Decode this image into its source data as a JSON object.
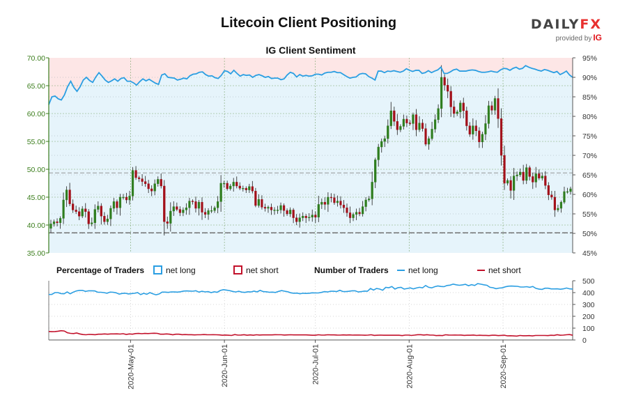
{
  "header": {
    "title": "Litecoin Client Positioning",
    "subtitle": "IG Client Sentiment",
    "logo": {
      "text_main": "DAILY",
      "text_fx": "FX",
      "provided_by": "provided by",
      "ig": "IG"
    }
  },
  "legend": {
    "pct_title": "Percentage of Traders",
    "pct_long": "net long",
    "pct_short": "net short",
    "num_title": "Number of Traders",
    "num_long": "net long",
    "num_short": "net short"
  },
  "colors": {
    "long": "#2a9ee2",
    "short": "#c2102a",
    "bull": "#2e7d1e",
    "bear": "#a2101a",
    "axis_left": "#3a7d1b",
    "bg_long": "#e6f4fb",
    "bg_short": "#fde6e6"
  },
  "chart_data": [
    {
      "type": "candlestick",
      "title": "IG Client Sentiment",
      "x_start": "2020-04-04",
      "x_end": "2020-09-24",
      "x_ticks": [
        "2020-May-01",
        "2020-Jun-01",
        "2020-Jul-01",
        "2020-Aug-01",
        "2020-Sep-01"
      ],
      "y_left_lim": [
        35,
        70
      ],
      "y_left_ticks": [
        "35.00",
        "40.00",
        "45.00",
        "50.00",
        "55.00",
        "60.00",
        "65.00",
        "70.00"
      ],
      "y_right_lim": [
        45,
        95
      ],
      "y_right_ticks": [
        "45%",
        "50%",
        "55%",
        "60%",
        "65%",
        "70%",
        "75%",
        "80%",
        "85%",
        "90%",
        "95%"
      ],
      "reference_lines": {
        "price_level": 38.6,
        "pct_50": 50
      },
      "price_close": [
        40.2,
        40.6,
        40.4,
        41.2,
        44.5,
        46.3,
        43.8,
        42.7,
        42.4,
        41.6,
        42.9,
        42.4,
        40.2,
        40.4,
        42.8,
        43.4,
        41.6,
        40.6,
        41.1,
        43.0,
        44.2,
        43.1,
        45.0,
        45.0,
        44.5,
        45.2,
        49.8,
        48.5,
        48.3,
        47.8,
        47.4,
        46.5,
        46.1,
        47.4,
        48.2,
        47.0,
        40.6,
        40.3,
        42.5,
        43.3,
        42.8,
        42.2,
        42.7,
        43.1,
        44.3,
        44.2,
        43.0,
        44.1,
        42.3,
        41.9,
        42.6,
        42.6,
        43.1,
        44.2,
        47.5,
        47.5,
        46.5,
        47.0,
        47.7,
        47.0,
        46.6,
        46.6,
        46.3,
        46.9,
        46.1,
        43.5,
        44.6,
        43.2,
        43.0,
        43.2,
        42.7,
        42.7,
        42.7,
        43.5,
        42.6,
        42.0,
        42.7,
        41.3,
        40.6,
        41.3,
        41.6,
        41.3,
        41.4,
        41.8,
        41.4,
        43.7,
        44.1,
        43.7,
        45.0,
        44.9,
        44.0,
        44.3,
        43.6,
        43.1,
        42.2,
        41.3,
        41.9,
        42.3,
        42.0,
        43.3,
        44.5,
        44.7,
        47.7,
        51.7,
        54.0,
        55.0,
        55.5,
        57.8,
        60.5,
        58.6,
        57.1,
        57.7,
        59.0,
        58.3,
        58.2,
        59.8,
        57.1,
        58.3,
        57.3,
        54.5,
        55.5,
        57.2,
        58.9,
        60.9,
        66.5,
        65.1,
        64.0,
        61.2,
        60.0,
        60.3,
        61.9,
        60.5,
        57.8,
        56.3,
        57.8,
        56.9,
        54.9,
        56.3,
        58.2,
        61.4,
        60.6,
        62.7,
        59.1,
        52.5,
        47.5,
        48.0,
        46.2,
        48.8,
        49.0,
        49.5,
        48.0,
        50.3,
        48.7,
        47.7,
        49.2,
        48.4,
        48.8,
        47.1,
        45.4,
        45.0,
        42.7,
        43.0,
        44.1,
        46.0,
        46.0,
        46.5
      ],
      "pct_long": [
        83.0,
        85.0,
        85.2,
        84.5,
        84.2,
        85.5,
        87.6,
        89.0,
        87.4,
        86.4,
        87.6,
        89.3,
        90.0,
        89.2,
        88.7,
        90.1,
        91.2,
        90.3,
        89.3,
        88.7,
        89.1,
        89.6,
        89.0,
        89.7,
        89.9,
        89.0,
        89.0,
        88.6,
        88.0,
        88.9,
        89.6,
        89.1,
        89.5,
        89.0,
        88.5,
        88.2,
        90.6,
        90.9,
        90.0,
        89.9,
        89.8,
        89.3,
        89.5,
        89.8,
        89.6,
        90.4,
        90.8,
        90.9,
        91.3,
        91.4,
        90.7,
        90.3,
        90.4,
        89.9,
        89.7,
        90.5,
        91.7,
        91.5,
        90.9,
        91.8,
        91.0,
        90.3,
        90.7,
        90.5,
        90.6,
        90.0,
        90.5,
        90.7,
        90.4,
        90.0,
        90.2,
        89.7,
        89.8,
        89.8,
        89.4,
        89.6,
        90.6,
        91.3,
        91.0,
        90.1,
        90.7,
        90.3,
        90.5,
        90.3,
        90.4,
        90.8,
        90.8,
        90.6,
        91.1,
        91.3,
        91.3,
        91.5,
        91.2,
        91.2,
        90.7,
        90.2,
        89.8,
        90.0,
        90.1,
        90.8,
        91.0,
        90.9,
        90.2,
        89.8,
        89.3,
        91.6,
        91.6,
        91.2,
        91.6,
        91.5,
        91.7,
        91.5,
        91.3,
        91.6,
        92.2,
        91.8,
        91.5,
        91.8,
        91.8,
        91.0,
        91.2,
        91.7,
        91.2,
        91.6,
        91.9,
        92.6,
        91.0,
        91.0,
        91.4,
        91.9,
        92.1,
        91.6,
        91.6,
        91.6,
        91.8,
        91.9,
        91.8,
        91.5,
        91.3,
        91.3,
        91.4,
        91.6,
        91.4,
        91.3,
        91.9,
        92.3,
        92.2,
        91.8,
        92.3,
        92.6,
        92.1,
        92.3,
        93.0,
        92.6,
        92.3,
        92.1,
        91.8,
        91.6,
        92.0,
        91.8,
        91.5,
        91.2,
        91.5,
        90.7,
        91.1,
        91.6,
        90.6,
        90.0
      ]
    },
    {
      "type": "line",
      "title": "Number of Traders",
      "y_lim": [
        0,
        500
      ],
      "y_ticks": [
        "0",
        "100",
        "200",
        "300",
        "400",
        "500"
      ],
      "series": [
        {
          "name": "net long",
          "values": [
            384,
            385,
            400,
            400,
            392,
            390,
            405,
            390,
            404,
            414,
            419,
            419,
            410,
            415,
            415,
            414,
            403,
            403,
            400,
            395,
            404,
            403,
            398,
            387,
            393,
            395,
            389,
            392,
            394,
            400,
            383,
            394,
            386,
            400,
            390,
            381,
            388,
            404,
            404,
            402,
            406,
            405,
            404,
            407,
            413,
            414,
            413,
            412,
            416,
            404,
            411,
            406,
            408,
            400,
            407,
            403,
            418,
            425,
            421,
            417,
            410,
            405,
            411,
            404,
            402,
            407,
            405,
            413,
            406,
            419,
            408,
            407,
            403,
            404,
            401,
            410,
            417,
            412,
            407,
            398,
            395,
            396,
            390,
            395,
            393,
            395,
            398,
            397,
            397,
            402,
            408,
            405,
            411,
            411,
            409,
            420,
            409,
            408,
            411,
            415,
            415,
            405,
            408,
            413,
            411,
            435,
            422,
            435,
            430,
            420,
            444,
            441,
            451,
            430,
            442,
            445,
            430,
            435,
            440,
            431,
            439,
            445,
            440,
            460,
            445,
            440,
            450,
            456,
            452,
            450,
            460,
            463,
            472,
            466,
            462,
            465,
            470,
            458,
            467,
            460,
            476,
            471,
            466,
            462,
            445,
            441,
            433,
            438,
            440,
            449,
            454,
            455,
            454,
            453,
            447,
            447,
            450,
            445,
            452,
            436,
            430,
            427,
            437,
            437,
            431,
            431,
            432,
            428,
            432,
            439,
            432,
            430
          ]
        },
        {
          "name": "net short",
          "values": [
            72,
            70,
            71,
            74,
            78,
            76,
            61,
            56,
            54,
            59,
            51,
            46,
            44,
            47,
            46,
            45,
            49,
            49,
            51,
            49,
            51,
            51,
            52,
            50,
            53,
            47,
            51,
            49,
            54,
            55,
            53,
            55,
            54,
            56,
            57,
            56,
            49,
            49,
            51,
            49,
            44,
            49,
            49,
            45,
            46,
            45,
            45,
            43,
            44,
            44,
            46,
            45,
            44,
            45,
            44,
            43,
            40,
            42,
            40,
            38,
            46,
            41,
            42,
            45,
            40,
            43,
            40,
            44,
            42,
            43,
            43,
            43,
            43,
            45,
            44,
            44,
            42,
            43,
            44,
            43,
            43,
            43,
            43,
            43,
            42,
            40,
            40,
            44,
            41,
            42,
            44,
            43,
            43,
            42,
            41,
            43,
            42,
            43,
            41,
            42,
            42,
            41,
            40,
            41,
            44,
            39,
            40,
            41,
            40,
            40,
            40,
            40,
            40,
            40,
            37,
            41,
            41,
            38,
            41,
            45,
            45,
            42,
            45,
            41,
            41,
            37,
            39,
            37,
            44,
            42,
            41,
            42,
            41,
            42,
            39,
            40,
            40,
            42,
            38,
            40,
            39,
            39,
            37,
            40,
            40,
            37,
            39,
            40,
            35,
            36,
            34,
            33,
            38,
            36,
            36,
            37,
            34,
            38,
            38,
            38,
            38,
            37,
            40,
            39,
            44,
            40,
            41,
            44,
            46,
            40
          ]
        }
      ]
    }
  ]
}
